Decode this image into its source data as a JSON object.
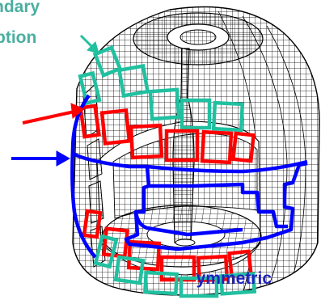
{
  "labels": {
    "line1": "ndary",
    "line2": "ption",
    "line3": "ymmetric"
  },
  "colors": {
    "label": "#4aaea0",
    "label_bottom": "#2020c0",
    "green": "#20c0a0",
    "red": "#ff0000",
    "blue": "#0000ff",
    "mesh": "#000000"
  }
}
